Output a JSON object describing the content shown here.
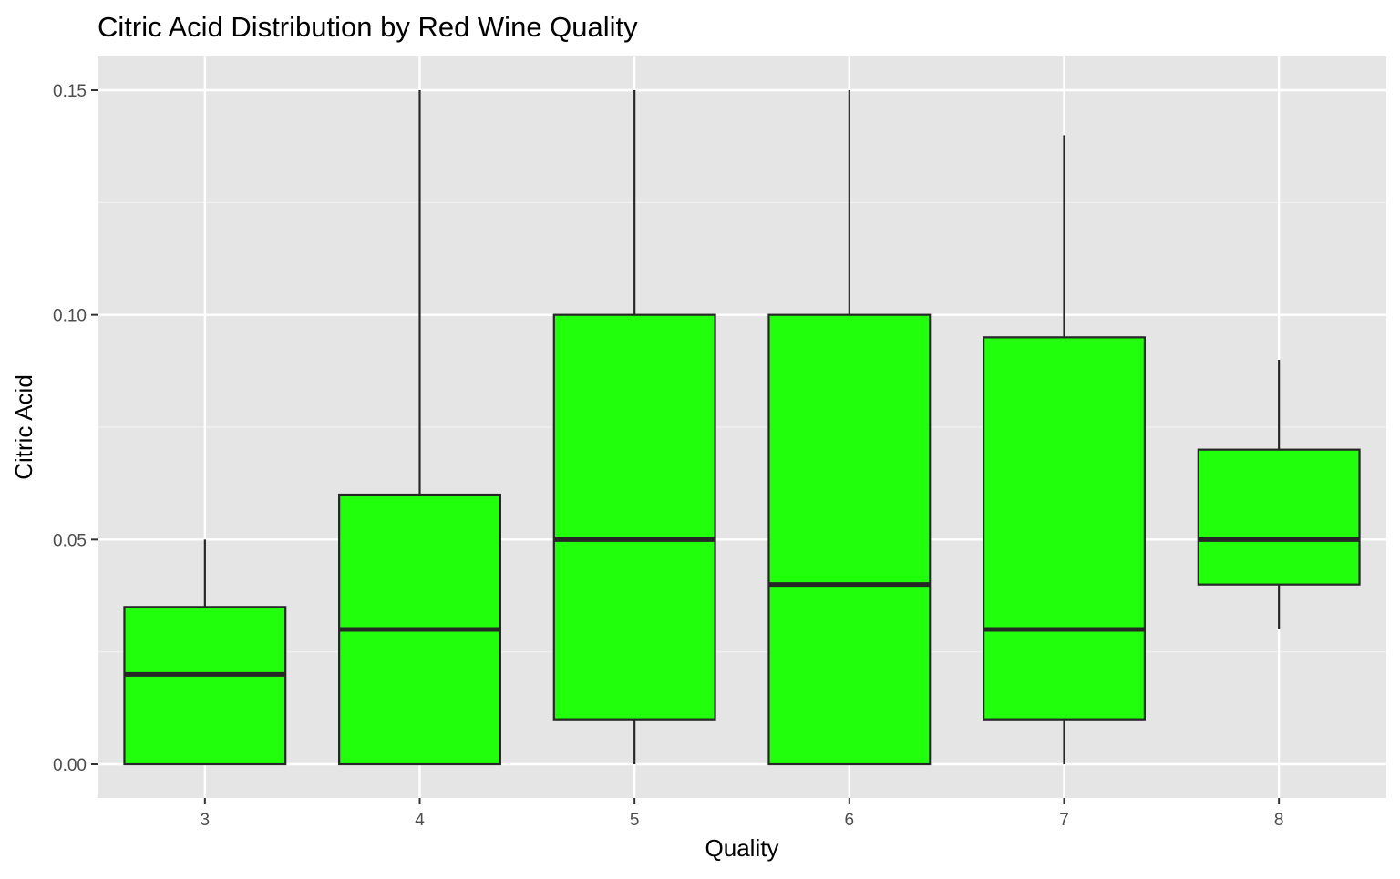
{
  "chart_data": {
    "type": "box",
    "title": "Citric Acid Distribution by Red Wine Quality",
    "xlabel": "Quality",
    "ylabel": "Citric Acid",
    "categories": [
      "3",
      "4",
      "5",
      "6",
      "7",
      "8"
    ],
    "ylim": [
      -0.0075,
      0.1575
    ],
    "yticks": [
      0.0,
      0.05,
      0.1,
      0.15
    ],
    "ytick_labels": [
      "0.00",
      "0.05",
      "0.10",
      "0.15"
    ],
    "grid": true,
    "legend": "none",
    "box_fill_color": "#22ff0d",
    "box_line_color": "#262626",
    "panel_background": "#e5e5e5",
    "boxes": [
      {
        "category": "3",
        "lower_whisker": 0.0,
        "q1": 0.0,
        "median": 0.02,
        "q3": 0.035,
        "upper_whisker": 0.05
      },
      {
        "category": "4",
        "lower_whisker": 0.0,
        "q1": 0.0,
        "median": 0.03,
        "q3": 0.06,
        "upper_whisker": 0.15
      },
      {
        "category": "5",
        "lower_whisker": 0.0,
        "q1": 0.01,
        "median": 0.05,
        "q3": 0.1,
        "upper_whisker": 0.15
      },
      {
        "category": "6",
        "lower_whisker": 0.0,
        "q1": 0.0,
        "median": 0.04,
        "q3": 0.1,
        "upper_whisker": 0.15
      },
      {
        "category": "7",
        "lower_whisker": 0.0,
        "q1": 0.01,
        "median": 0.03,
        "q3": 0.095,
        "upper_whisker": 0.14
      },
      {
        "category": "8",
        "lower_whisker": 0.03,
        "q1": 0.04,
        "median": 0.05,
        "q3": 0.07,
        "upper_whisker": 0.09
      }
    ]
  }
}
